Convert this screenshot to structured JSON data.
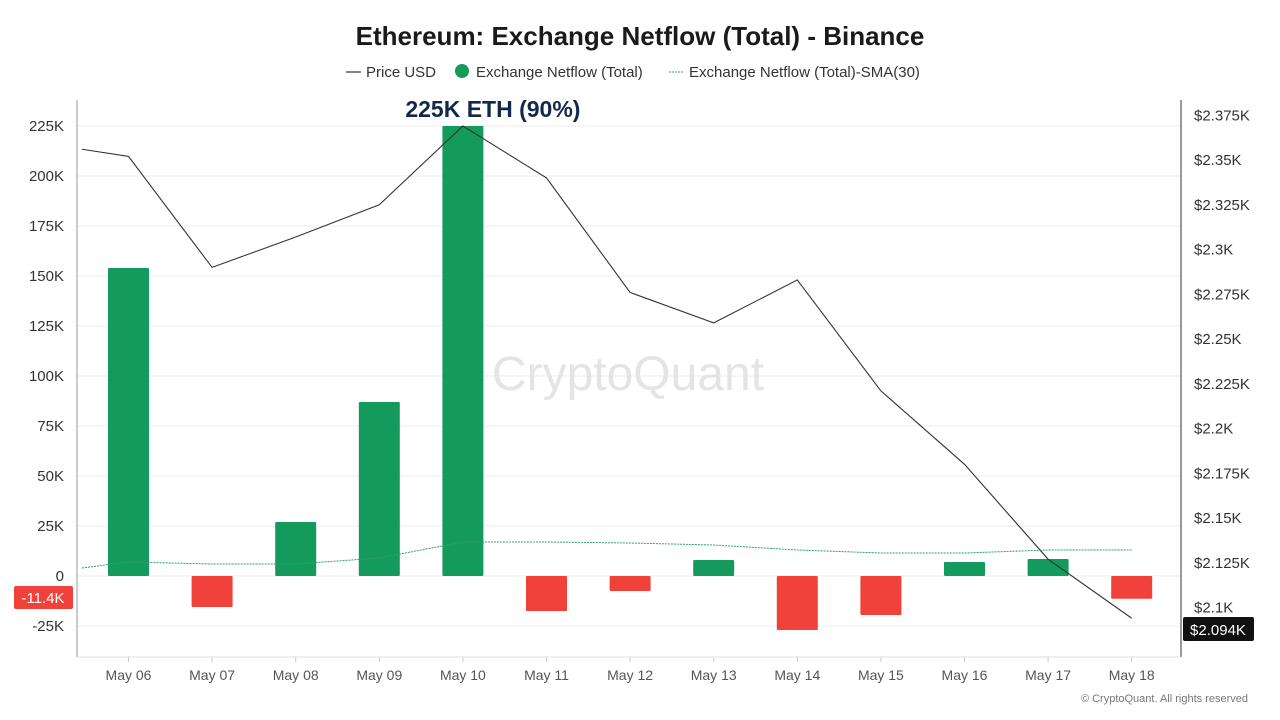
{
  "chart_data": {
    "type": "bar",
    "title": "Ethereum: Exchange Netflow (Total) - Binance",
    "categories": [
      "May 06",
      "May 07",
      "May 08",
      "May 09",
      "May 10",
      "May 11",
      "May 12",
      "May 13",
      "May 14",
      "May 15",
      "May 16",
      "May 17",
      "May 18"
    ],
    "series": [
      {
        "name": "Exchange Netflow (Total)",
        "kind": "bar",
        "axis": "left",
        "values": [
          154000,
          -15500,
          27000,
          87000,
          225000,
          -17500,
          -7500,
          8000,
          -27000,
          -19500,
          7000,
          8500,
          -11400
        ],
        "color_positive": "#159a5e",
        "color_negative": "#f0423b"
      },
      {
        "name": "Price USD",
        "kind": "line",
        "axis": "right",
        "x": [
          "May 05",
          "May 06",
          "May 07",
          "May 08",
          "May 09",
          "May 10",
          "May 11",
          "May 12",
          "May 13",
          "May 14",
          "May 15",
          "May 16",
          "May 17",
          "May 18"
        ],
        "values": [
          2356,
          2352,
          2290,
          2307,
          2325,
          2369,
          2340,
          2276,
          2259,
          2283,
          2221,
          2180,
          2127,
          2094
        ],
        "color": "#333333"
      },
      {
        "name": "Exchange Netflow (Total)-SMA(30)",
        "kind": "line",
        "axis": "left",
        "x": [
          "May 05",
          "May 06",
          "May 07",
          "May 08",
          "May 09",
          "May 10",
          "May 11",
          "May 12",
          "May 13",
          "May 14",
          "May 15",
          "May 16",
          "May 17",
          "May 18"
        ],
        "values": [
          4000,
          7000,
          6000,
          6000,
          9000,
          17000,
          17000,
          16500,
          15500,
          13000,
          11500,
          11500,
          13000,
          13000
        ],
        "color": "#2f9e6b"
      }
    ],
    "left_axis": {
      "ylim": [
        -40000,
        237500
      ],
      "ticks": [
        225000,
        200000,
        175000,
        150000,
        125000,
        100000,
        75000,
        50000,
        25000,
        0,
        -25000
      ],
      "tick_labels": [
        "225K",
        "200K",
        "175K",
        "150K",
        "125K",
        "100K",
        "75K",
        "50K",
        "25K",
        "0",
        "-25K"
      ]
    },
    "right_axis": {
      "ticks": [
        2375,
        2350,
        2325,
        2300,
        2275,
        2250,
        2225,
        2200,
        2175,
        2150,
        2125,
        2100
      ],
      "tick_labels": [
        "$2.375K",
        "$2.35K",
        "$2.325K",
        "$2.3K",
        "$2.275K",
        "$2.25K",
        "$2.225K",
        "$2.2K",
        "$2.175K",
        "$2.15K",
        "$2.125K",
        "$2.1K"
      ],
      "last_value_label": "$2.094K",
      "last_value": 2094
    },
    "left_badge": {
      "label": "-11.4K",
      "value": -11400,
      "color": "#f0423b"
    },
    "annotation": {
      "text": "225K ETH (90%)",
      "category": "May 10"
    },
    "watermark": "CryptoQuant",
    "footer": "© CryptoQuant. All rights reserved",
    "grid": true,
    "legend_position": "top-center"
  }
}
